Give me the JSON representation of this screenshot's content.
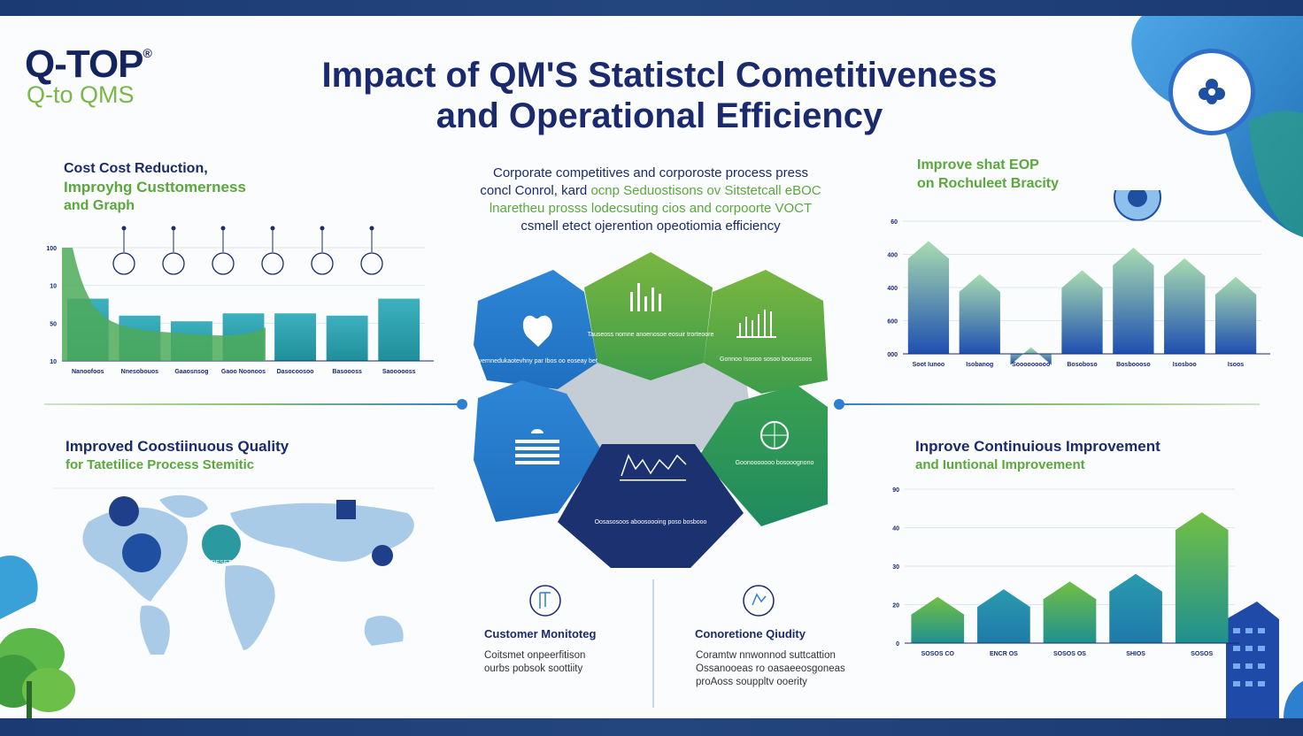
{
  "logo": {
    "name": "Q-TOP",
    "registered": "®",
    "tagline": "Q-to QMS"
  },
  "title": {
    "line1": "Impact of QM'S Statistcl Cometitiveness",
    "line2": "and Operational Efficiency"
  },
  "top_left": {
    "heading1": "Cost Cost Reduction,",
    "heading2": "Improyhg Custtomerness",
    "heading3": "and Graph",
    "chart": {
      "type": "bar",
      "y_ticks": [
        "10",
        "50",
        "10",
        "100"
      ],
      "categories": [
        "Nanoofoos",
        "Nnesobouos",
        "Gaaosnsog",
        "Gaoo Noonoos",
        "Dasocoosoo",
        "Basoooss",
        "Saoooooss"
      ],
      "values": [
        55,
        40,
        35,
        42,
        42,
        40,
        55
      ],
      "area_color": "#4daa5a",
      "bar_color": "#2a9aa8"
    }
  },
  "center_text": {
    "line1": "Corporate competitives and corporoste process press",
    "line2a": "concl Conrol, kard",
    "line2b": "ocnp Seduostisons ov Sitstetcall eBOC",
    "line3": "lnaretheu prosss lodecsuting cios and corpoorte VOCT",
    "line4": "csmell etect ojerention opeotiomia efficiency"
  },
  "top_right": {
    "heading1": "Improve shat EOP",
    "heading2": "on Rochuleet Bracity",
    "chart": {
      "type": "bar",
      "y_ticks": [
        "000",
        "600",
        "400",
        "400",
        "60"
      ],
      "categories": [
        "Soot Iunoo",
        "Isobanog",
        "Sooooooooo",
        "Bosoboso",
        "Bosboooso",
        "Isosboo",
        "Isoos"
      ],
      "values": [
        85,
        60,
        5,
        63,
        80,
        72,
        58
      ],
      "colors": [
        "#3b7ed8",
        "#2a5fc0"
      ]
    }
  },
  "left_mid": {
    "heading1": "Improved Coostiinuous Quality",
    "heading2": "for Tatetilice Process Stemitic",
    "map_label": "DESET"
  },
  "right_mid": {
    "heading1": "Inprove Continuious Improvement",
    "heading2": "and Iuntional Improvement",
    "chart": {
      "type": "bar",
      "y_ticks": [
        "0",
        "20",
        "30",
        "40",
        "90"
      ],
      "categories": [
        "SOSOS CO",
        "ENCR OS",
        "SOSOS OS",
        "SHIOS",
        "SOSOS"
      ],
      "values": [
        30,
        35,
        40,
        45,
        85
      ],
      "colors": [
        "#6cb84a",
        "#2a8ca8"
      ]
    }
  },
  "hex": {
    "tl": "Gvernnedukaotevhny par Ibos oo eoseay bet",
    "top": "Tauseoss nomne anoenosoe eosuir trorteoore",
    "tr": "Gonnoo Isosoo sosoo booussoos",
    "mr": "Goonooooooo bosooognono",
    "bottom": "Oosasosoos aboosoooing poso bosbooo"
  },
  "bottom_center": {
    "left_title": "Customer Monitoteg",
    "left_text1": "Coitsmet onpeerfitison",
    "left_text2": "ourbs  pobsok  soottiity",
    "right_title": "Conoretione Qiudity",
    "right_text1": "Coramtw nnwonnod suttcattion",
    "right_text2": "Ossanooeas ro oasaeeosgoneas",
    "right_text3": "proAoss souppltv ooerity"
  },
  "colors": {
    "navy": "#1a2a6c",
    "green": "#5aa83c",
    "blue": "#2f7fd0",
    "teal": "#2a9aa8"
  }
}
